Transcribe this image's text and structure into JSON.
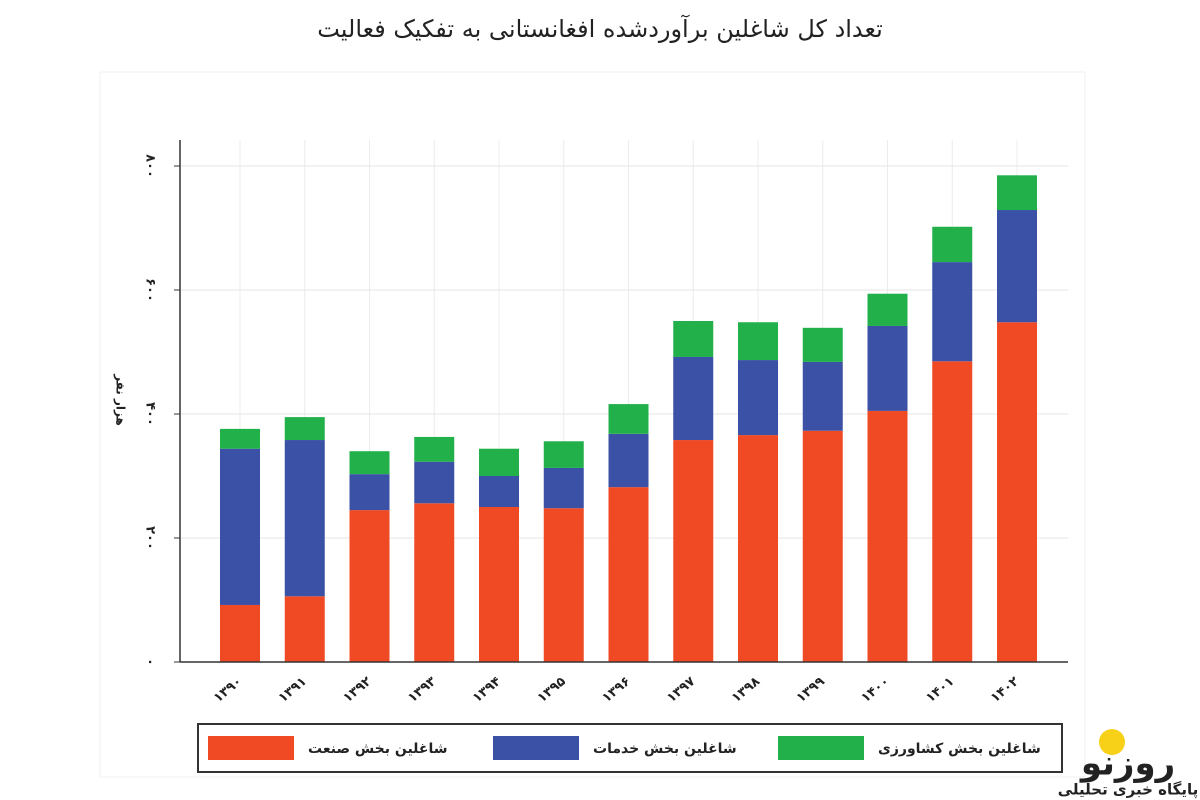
{
  "chart_data": {
    "type": "stacked-bar",
    "title": "تعداد کل شاغلین برآوردشده افغانستانی به تفکیک فعالیت",
    "y_label": "هزار نفر",
    "categories": [
      "۱۳۹۰",
      "۱۳۹۱",
      "۱۳۹۲",
      "۱۳۹۳",
      "۱۳۹۴",
      "۱۳۹۵",
      "۱۳۹۶",
      "۱۳۹۷",
      "۱۳۹۸",
      "۱۳۹۹",
      "۱۴۰۰",
      "۱۴۰۱",
      "۱۴۰۲"
    ],
    "series": [
      {
        "name": "شاغلین بخش صنعت",
        "color": "#ef4a24",
        "values": [
          92,
          106,
          245,
          256,
          250,
          248,
          282,
          358,
          366,
          373,
          405,
          485,
          548
        ]
      },
      {
        "name": "شاغلین بخش خدمات",
        "color": "#3a51a6",
        "values": [
          252,
          252,
          58,
          67,
          50,
          65,
          86,
          134,
          121,
          111,
          137,
          160,
          181
        ]
      },
      {
        "name": "شاغلین بخش کشاورزی",
        "color": "#22b04b",
        "values": [
          32,
          37,
          37,
          40,
          44,
          43,
          48,
          58,
          61,
          55,
          52,
          57,
          56
        ]
      }
    ],
    "ylim": [
      0,
      800
    ],
    "yticks": [
      {
        "value": 0,
        "label": "۰"
      },
      {
        "value": 200,
        "label": "۲۰۰"
      },
      {
        "value": 400,
        "label": "۴۰۰"
      },
      {
        "value": 600,
        "label": "۶۰۰"
      },
      {
        "value": 800,
        "label": "۸۰۰"
      }
    ],
    "grid": true
  },
  "watermark": {
    "logo": "روزنو",
    "tagline": "پایگاه خبری تحلیلی"
  }
}
